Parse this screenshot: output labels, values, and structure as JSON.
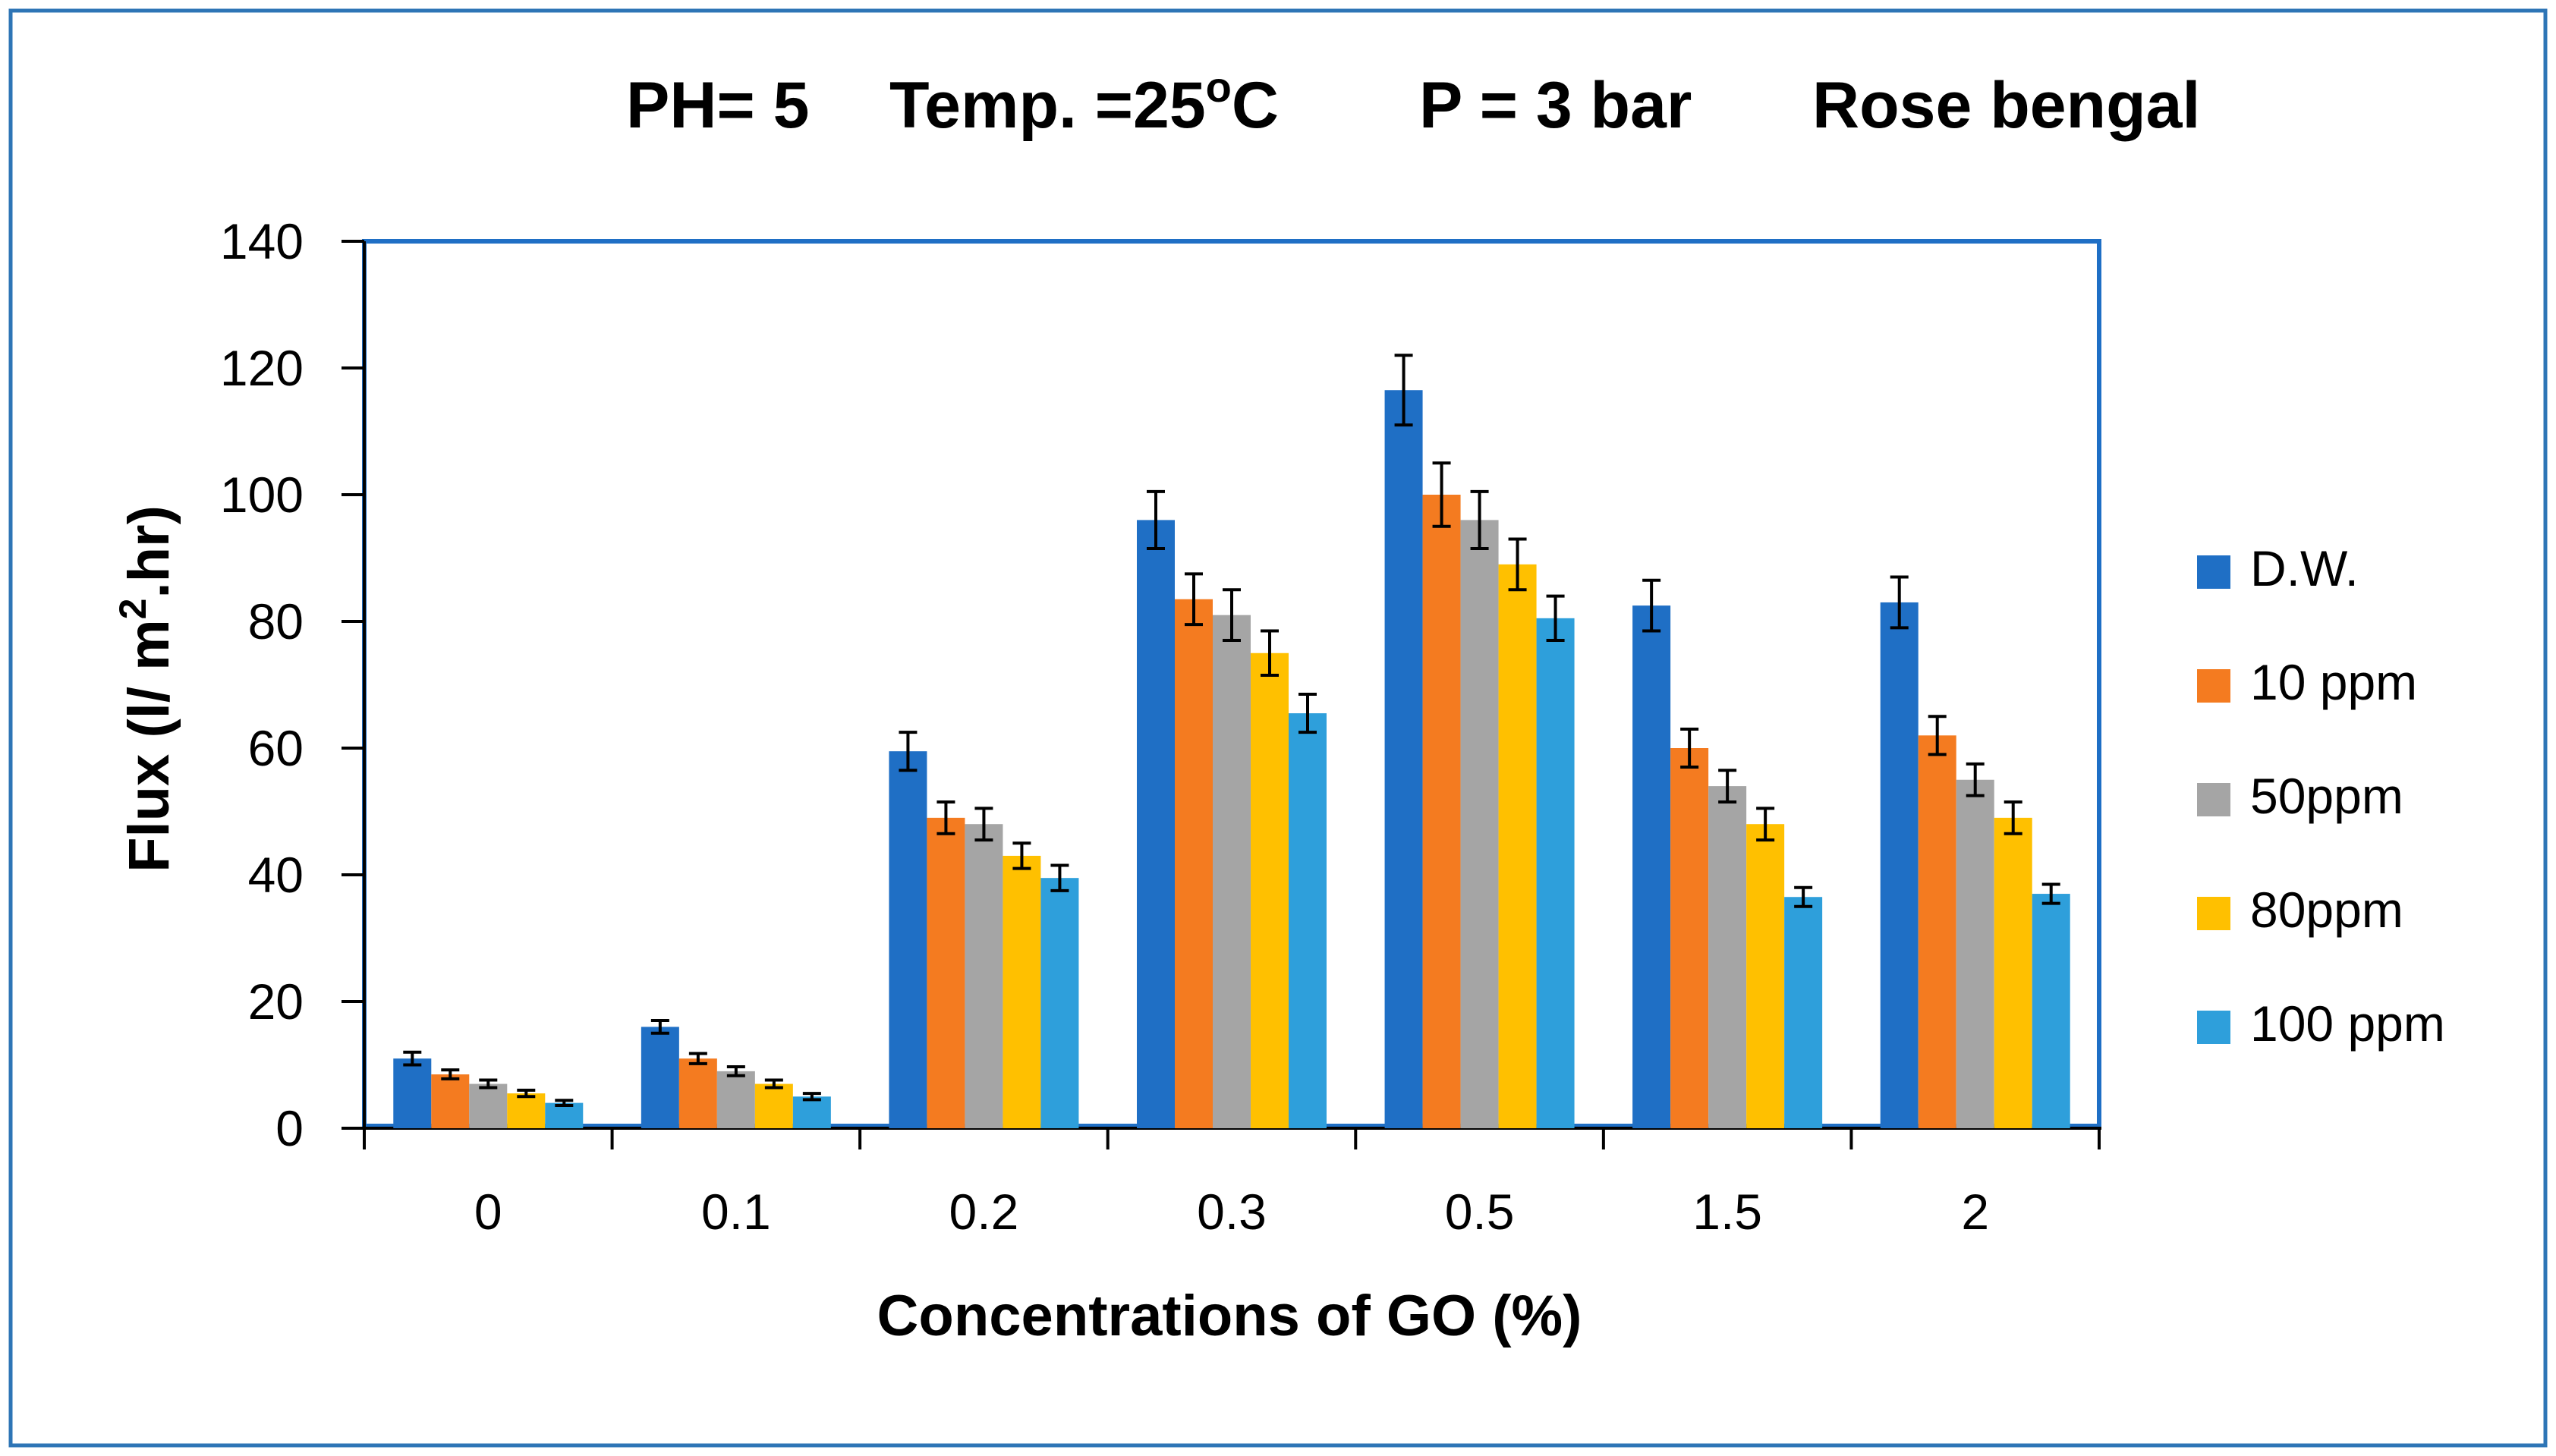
{
  "chart_data": {
    "type": "bar",
    "title_parts": [
      {
        "key": "ph",
        "text": "PH= 5"
      },
      {
        "key": "temp",
        "text": "Temp. =25",
        "sup": "o",
        "suffix": "C"
      },
      {
        "key": "pressure",
        "text": "P = 3 bar"
      },
      {
        "key": "dye",
        "text": "Rose bengal"
      }
    ],
    "xlabel": "Concentrations of GO (%)",
    "ylabel_prefix": "Flux (l/ m",
    "ylabel_sup": "2",
    "ylabel_suffix": ".hr)",
    "categories": [
      "0",
      "0.1",
      "0.2",
      "0.3",
      "0.5",
      "1.5",
      "2"
    ],
    "ylim": [
      0,
      140
    ],
    "yticks": [
      0,
      20,
      40,
      60,
      80,
      100,
      120,
      140
    ],
    "error_bars": true,
    "legend_position": "right",
    "series": [
      {
        "name": "D.W.",
        "color": "#1F6FC5",
        "values": [
          11,
          16,
          59.5,
          96,
          116.5,
          82.5,
          83
        ],
        "errors": [
          1,
          1,
          3,
          4.5,
          5.5,
          4,
          4
        ]
      },
      {
        "name": "10 ppm",
        "color": "#F47B20",
        "values": [
          8.5,
          11,
          49,
          83.5,
          100,
          60,
          62
        ],
        "errors": [
          0.7,
          0.8,
          2.5,
          4,
          5,
          3,
          3
        ]
      },
      {
        "name": "50ppm",
        "color": "#A5A5A5",
        "values": [
          7,
          9,
          48,
          81,
          96,
          54,
          55
        ],
        "errors": [
          0.6,
          0.7,
          2.5,
          4,
          4.5,
          2.5,
          2.5
        ]
      },
      {
        "name": "80ppm",
        "color": "#FFC000",
        "values": [
          5.5,
          7,
          43,
          75,
          89,
          48,
          49
        ],
        "errors": [
          0.5,
          0.6,
          2,
          3.5,
          4,
          2.5,
          2.5
        ]
      },
      {
        "name": "100 ppm",
        "color": "#2E9FDB",
        "values": [
          4,
          5,
          39.5,
          65.5,
          80.5,
          36.5,
          37
        ],
        "errors": [
          0.4,
          0.5,
          2,
          3,
          3.5,
          1.5,
          1.5
        ]
      }
    ],
    "colors": {
      "plot_border": "#1F6FC5",
      "outer_border": "#2E75B6",
      "axis": "#000000"
    }
  }
}
